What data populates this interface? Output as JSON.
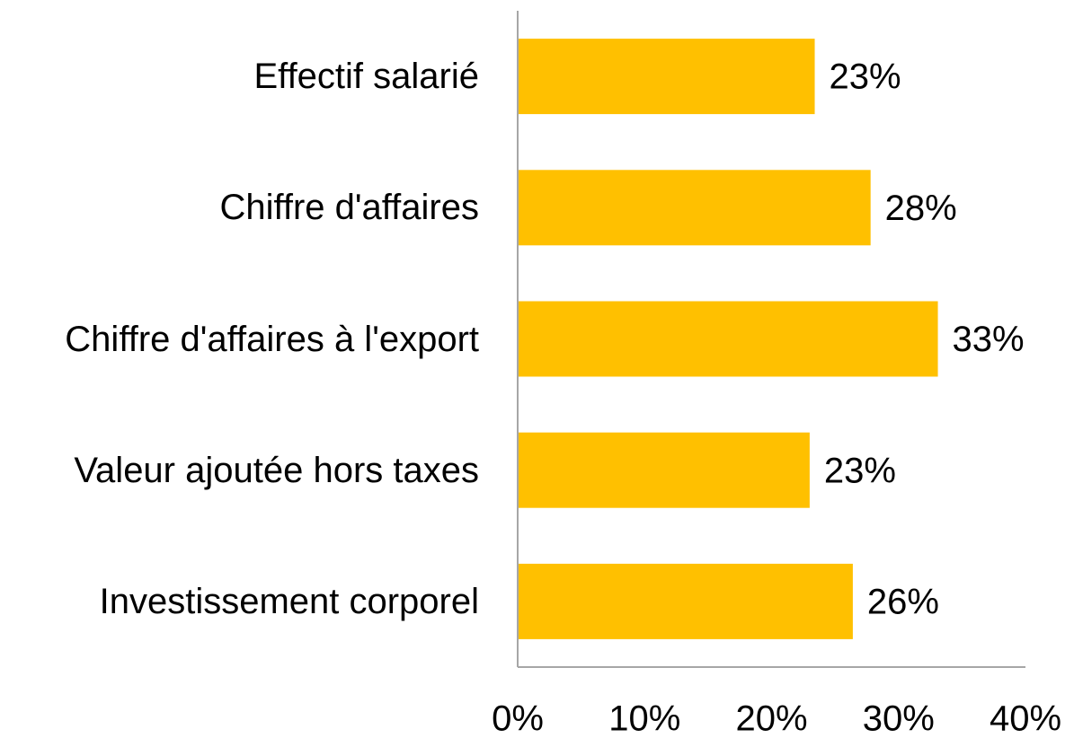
{
  "chart_data": {
    "type": "bar",
    "orientation": "horizontal",
    "categories": [
      "Effectif salarié",
      "Chiffre d'affaires",
      "Chiffre d'affaires à l'export",
      "Valeur ajoutée hors taxes",
      "Investissement corporel"
    ],
    "values": [
      23.4,
      27.8,
      33.1,
      23.0,
      26.4
    ],
    "value_labels": [
      "23%",
      "28%",
      "33%",
      "23%",
      "26%"
    ],
    "color": "#ffc000",
    "xlim": [
      0,
      40
    ],
    "xticks": [
      {
        "value": 0,
        "label": "0%"
      },
      {
        "value": 10,
        "label": "10%"
      },
      {
        "value": 20,
        "label": "20%"
      },
      {
        "value": 30,
        "label": "30%"
      },
      {
        "value": 40,
        "label": "40%"
      }
    ],
    "grid": false
  }
}
